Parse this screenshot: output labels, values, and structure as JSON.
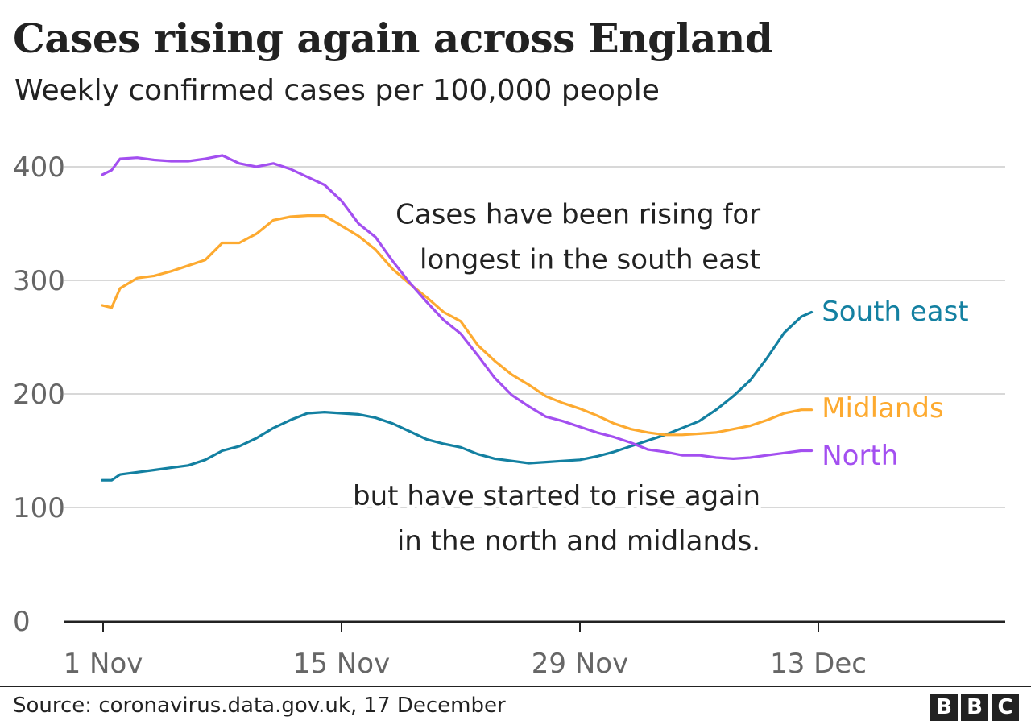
{
  "header": {
    "title": "Cases rising again across England",
    "subtitle": "Weekly confirmed cases per 100,000 people"
  },
  "footer": {
    "source": "Source: coronavirus.data.gov.uk, 17 December",
    "logo_letters": [
      "B",
      "B",
      "C"
    ]
  },
  "colors": {
    "south_east": "#1380a1",
    "midlands": "#fdaa30",
    "north": "#a34ff0",
    "grid": "#cccccc",
    "axis": "#222222",
    "tick_text": "#666666",
    "text": "#222222"
  },
  "chart_data": {
    "type": "line",
    "x_ticks": [
      "1 Nov",
      "15 Nov",
      "29 Nov",
      "13 Dec"
    ],
    "x_tick_days": [
      1,
      15,
      29,
      43
    ],
    "xlim_days": [
      0.95,
      55.3
    ],
    "ylim": [
      0,
      400
    ],
    "y_ticks": [
      0,
      100,
      200,
      300,
      400
    ],
    "grid": "horizontal",
    "series": [
      {
        "name": "South east",
        "color": "#1380a1",
        "x_days": [
          0.95,
          1.5,
          2,
          3,
          4,
          5,
          6,
          7,
          8,
          9,
          10,
          11,
          12,
          13,
          14,
          15,
          16,
          17,
          18,
          19,
          20,
          21,
          22,
          23,
          24,
          25,
          26,
          27,
          28,
          29,
          30,
          31,
          32,
          33,
          34,
          35,
          36,
          37,
          38,
          39,
          40,
          41,
          42,
          42.6
        ],
        "values": [
          124,
          124,
          129,
          131,
          133,
          135,
          137,
          142,
          150,
          154,
          161,
          170,
          177,
          183,
          184,
          183,
          182,
          179,
          174,
          167,
          160,
          156,
          153,
          147,
          143,
          141,
          139,
          140,
          141,
          142,
          145,
          149,
          154,
          159,
          164,
          170,
          176,
          186,
          198,
          212,
          232,
          254,
          268,
          272
        ]
      },
      {
        "name": "Midlands",
        "color": "#fdaa30",
        "x_days": [
          0.95,
          1.5,
          2,
          3,
          4,
          5,
          6,
          7,
          8,
          9,
          10,
          11,
          12,
          13,
          14,
          15,
          16,
          17,
          18,
          19,
          20,
          21,
          22,
          23,
          24,
          25,
          26,
          27,
          28,
          29,
          30,
          31,
          32,
          33,
          34,
          35,
          36,
          37,
          38,
          39,
          40,
          41,
          42,
          42.6
        ],
        "values": [
          278,
          276,
          293,
          302,
          304,
          308,
          313,
          318,
          333,
          333,
          341,
          353,
          356,
          357,
          357,
          348,
          339,
          327,
          310,
          297,
          285,
          272,
          264,
          243,
          229,
          217,
          208,
          198,
          192,
          187,
          181,
          174,
          169,
          166,
          164,
          164,
          165,
          166,
          169,
          172,
          177,
          183,
          186,
          186
        ]
      },
      {
        "name": "North",
        "color": "#a34ff0",
        "x_days": [
          0.95,
          1.5,
          2,
          3,
          4,
          5,
          6,
          7,
          8,
          9,
          10,
          11,
          12,
          13,
          14,
          15,
          16,
          17,
          18,
          19,
          20,
          21,
          22,
          23,
          24,
          25,
          26,
          27,
          28,
          29,
          30,
          31,
          32,
          33,
          34,
          35,
          36,
          37,
          38,
          39,
          40,
          41,
          42,
          42.6
        ],
        "values": [
          393,
          397,
          407,
          408,
          406,
          405,
          405,
          407,
          410,
          403,
          400,
          403,
          398,
          391,
          384,
          370,
          350,
          338,
          317,
          298,
          281,
          265,
          253,
          234,
          214,
          199,
          189,
          180,
          176,
          171,
          166,
          162,
          157,
          151,
          149,
          146,
          146,
          144,
          143,
          144,
          146,
          148,
          150,
          150
        ]
      }
    ],
    "series_labels": [
      {
        "name": "South east",
        "color": "#1380a1",
        "anchor_day": 43.2,
        "anchor_value": 273
      },
      {
        "name": "Midlands",
        "color": "#fdaa30",
        "anchor_day": 43.2,
        "anchor_value": 188
      },
      {
        "name": "North",
        "color": "#a34ff0",
        "anchor_day": 43.2,
        "anchor_value": 146
      }
    ],
    "annotations": [
      {
        "lines": [
          "Cases have been rising for",
          "longest in the south east"
        ],
        "anchor_day": 39.6,
        "anchor_value": 350,
        "align": "right"
      },
      {
        "lines": [
          "but have started to rise again",
          "in the north and midlands."
        ],
        "anchor_day": 39.6,
        "anchor_value": 102,
        "align": "right"
      }
    ]
  }
}
